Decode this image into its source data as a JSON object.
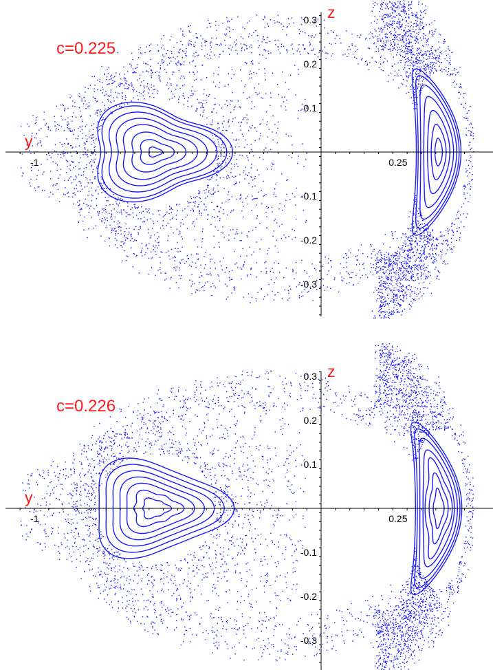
{
  "chart_data": [
    {
      "type": "scatter",
      "title": "c=0.225",
      "xlabel": "y",
      "ylabel": "z",
      "xlim": [
        -1.06,
        0.54
      ],
      "ylim": [
        -0.38,
        0.33
      ],
      "x_tick_labels": [
        {
          "value": -1,
          "text": "-1"
        },
        {
          "value": 0.25,
          "text": "0.25"
        }
      ],
      "y_tick_labels": [
        {
          "value": 0.3,
          "text": "0.3"
        },
        {
          "value": 0.2,
          "text": "0.2"
        },
        {
          "value": 0.1,
          "text": "0.1"
        },
        {
          "value": -0.1,
          "text": "-0.1"
        },
        {
          "value": -0.2,
          "text": "-0.2"
        },
        {
          "value": -0.3,
          "text": "-0.3"
        }
      ],
      "color": "#1a1aff",
      "islands": [
        {
          "center": [
            -0.58,
            0.0
          ],
          "levels": [
            0.02,
            0.05,
            0.08,
            0.11,
            0.135,
            0.16,
            0.185,
            0.2
          ],
          "shape": "triangle"
        },
        {
          "center": [
            0.41,
            0.0
          ],
          "levels": [
            0.03,
            0.06,
            0.09,
            0.12,
            0.145,
            0.165,
            0.18
          ],
          "shape": "crescent"
        }
      ],
      "chaotic_sea": {
        "x_range": [
          -1.0,
          0.52
        ],
        "y_range": [
          -0.37,
          0.31
        ],
        "points": 4200
      }
    },
    {
      "type": "scatter",
      "title": "c=0.226",
      "xlabel": "y",
      "ylabel": "z",
      "xlim": [
        -1.06,
        0.54
      ],
      "ylim": [
        -0.38,
        0.33
      ],
      "x_tick_labels": [
        {
          "value": -1,
          "text": "-1"
        },
        {
          "value": 0.25,
          "text": "0.25"
        }
      ],
      "y_tick_labels": [
        {
          "value": 0.3,
          "text": "0.3"
        },
        {
          "value": 0.2,
          "text": "0.2"
        },
        {
          "value": 0.1,
          "text": "0.1"
        },
        {
          "value": -0.1,
          "text": "-0.1"
        },
        {
          "value": -0.2,
          "text": "-0.2"
        },
        {
          "value": -0.3,
          "text": "-0.3"
        }
      ],
      "color": "#1a1aff",
      "islands": [
        {
          "center": [
            -0.58,
            0.0
          ],
          "levels": [
            0.04,
            0.07,
            0.1,
            0.125,
            0.15,
            0.175,
            0.2
          ],
          "shape": "triangle"
        },
        {
          "center": [
            0.41,
            0.0
          ],
          "levels": [
            0.04,
            0.07,
            0.1,
            0.125,
            0.15,
            0.17,
            0.185
          ],
          "shape": "crescent"
        }
      ],
      "chaotic_sea": {
        "x_range": [
          -1.0,
          0.52
        ],
        "y_range": [
          -0.37,
          0.31
        ],
        "points": 4200
      }
    }
  ]
}
